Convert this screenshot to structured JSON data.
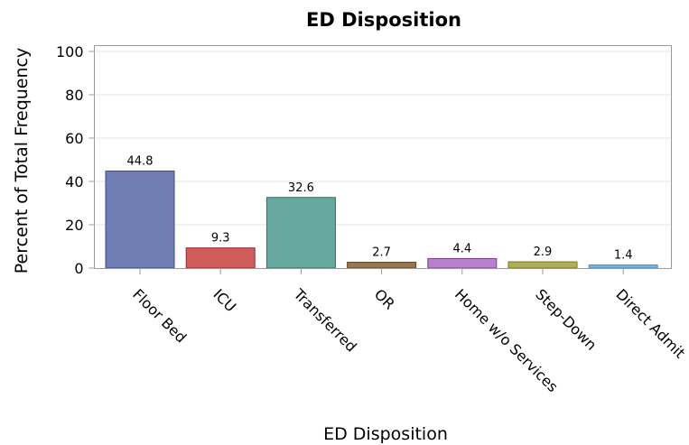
{
  "chart_data": {
    "type": "bar",
    "title": "ED Disposition",
    "xlabel": "ED Disposition",
    "ylabel": "Percent of Total Frequency",
    "ylim": [
      0,
      100
    ],
    "yticks": [
      0,
      20,
      40,
      60,
      80,
      100
    ],
    "grid": true,
    "categories": [
      "Floor Bed",
      "ICU",
      "Transferred",
      "OR",
      "Home w/o Services",
      "Step-Down",
      "Direct Admit"
    ],
    "values": [
      44.8,
      9.3,
      32.6,
      2.7,
      4.4,
      2.9,
      1.4
    ],
    "data_labels": [
      "44.8",
      "9.3",
      "32.6",
      "2.7",
      "4.4",
      "2.9",
      "1.4"
    ],
    "colors": [
      "#6f7fb5",
      "#d05b5b",
      "#66a89e",
      "#957651",
      "#b77fcc",
      "#b3ad57",
      "#7eb4e0"
    ],
    "edge_colors": [
      "#3e4c85",
      "#8e2f2f",
      "#2f6e64",
      "#5e4626",
      "#7b3f93",
      "#7a7428",
      "#4a86b8"
    ]
  }
}
